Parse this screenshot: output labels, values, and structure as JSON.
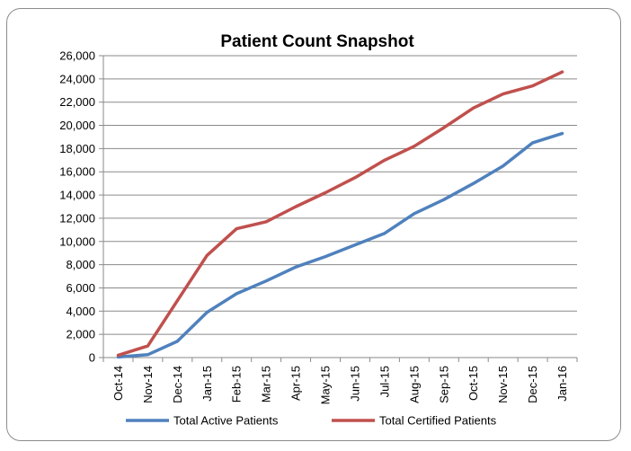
{
  "chart_data": {
    "type": "line",
    "title": "Patient Count Snapshot",
    "xlabel": "",
    "ylabel": "",
    "categories": [
      "Oct-14",
      "Nov-14",
      "Dec-14",
      "Jan-15",
      "Feb-15",
      "Mar-15",
      "Apr-15",
      "May-15",
      "Jun-15",
      "Jul-15",
      "Aug-15",
      "Sep-15",
      "Oct-15",
      "Nov-15",
      "Dec-15",
      "Jan-16"
    ],
    "ylim": [
      0,
      26000
    ],
    "yticks": [
      0,
      2000,
      4000,
      6000,
      8000,
      10000,
      12000,
      14000,
      16000,
      18000,
      20000,
      22000,
      24000,
      26000
    ],
    "ytick_labels": [
      "0",
      "2,000",
      "4,000",
      "6,000",
      "8,000",
      "10,000",
      "12,000",
      "14,000",
      "16,000",
      "18,000",
      "20,000",
      "22,000",
      "24,000",
      "26,000"
    ],
    "grid": true,
    "legend_position": "bottom",
    "series": [
      {
        "name": "Total Active Patients",
        "color": "#4f81bd",
        "values": [
          50,
          250,
          1400,
          3900,
          5500,
          6600,
          7800,
          8700,
          9700,
          10700,
          12400,
          13600,
          15000,
          16500,
          18500,
          19300
        ]
      },
      {
        "name": "Total Certified Patients",
        "color": "#c0504d",
        "values": [
          200,
          1000,
          4900,
          8800,
          11100,
          11700,
          13000,
          14200,
          15500,
          17000,
          18200,
          19800,
          21500,
          22700,
          23400,
          24600
        ]
      }
    ]
  }
}
